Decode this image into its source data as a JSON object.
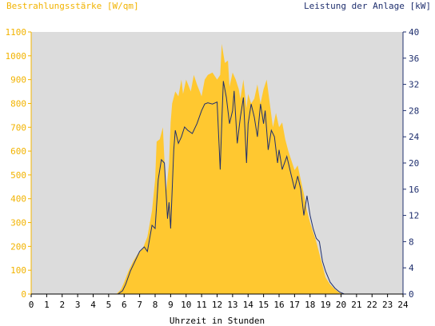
{
  "chart_data": {
    "type": "area",
    "left_title": "Bestrahlungsstärke [W/qm]",
    "right_title": "Leistung der Anlage [kW]",
    "xlabel": "Uhrzeit in Stunden",
    "x_ticks": [
      "0",
      "1",
      "2",
      "3",
      "4",
      "5",
      "6",
      "7",
      "8",
      "9",
      "10",
      "11",
      "12",
      "13",
      "14",
      "15",
      "16",
      "17",
      "18",
      "19",
      "20",
      "21",
      "22",
      "23",
      "24"
    ],
    "xlim": [
      0,
      24
    ],
    "ylim_left": [
      0,
      1100
    ],
    "ylim_right": [
      0,
      40
    ],
    "y_ticks_left": [
      "0",
      "100",
      "200",
      "300",
      "400",
      "500",
      "600",
      "700",
      "800",
      "900",
      "1000",
      "1100"
    ],
    "y_ticks_right": [
      "0",
      "4",
      "8",
      "12",
      "16",
      "20",
      "24",
      "28",
      "32",
      "36",
      "40"
    ],
    "grid": false,
    "colors": {
      "irradiance": "#FFC830",
      "power": "#1F2F6E",
      "plot_bg": "#DCDCDC",
      "left_axis_text": "#F2B300",
      "right_axis_text": "#1F2F6E"
    },
    "series": [
      {
        "name": "Bestrahlungsstärke [W/qm]",
        "axis": "left",
        "x": [
          0,
          5.5,
          5.8,
          6.0,
          6.3,
          6.6,
          6.9,
          7.2,
          7.5,
          7.8,
          8.0,
          8.1,
          8.3,
          8.5,
          8.7,
          8.9,
          9.0,
          9.1,
          9.3,
          9.5,
          9.7,
          9.8,
          10.0,
          10.3,
          10.5,
          10.7,
          11.0,
          11.2,
          11.4,
          11.7,
          12.0,
          12.2,
          12.3,
          12.5,
          12.7,
          12.8,
          13.0,
          13.2,
          13.4,
          13.5,
          13.7,
          13.9,
          14.0,
          14.2,
          14.4,
          14.6,
          14.8,
          15.0,
          15.2,
          15.4,
          15.6,
          15.8,
          16.0,
          16.2,
          16.4,
          16.6,
          16.8,
          17.0,
          17.2,
          17.4,
          17.6,
          17.8,
          18.0,
          18.2,
          18.4,
          18.6,
          18.8,
          19.0,
          19.3,
          19.6,
          19.9,
          20.2,
          20.5,
          20.8,
          24
        ],
        "values": [
          0,
          0,
          20,
          50,
          100,
          140,
          170,
          190,
          240,
          350,
          480,
          640,
          650,
          700,
          420,
          550,
          720,
          800,
          850,
          830,
          900,
          840,
          900,
          850,
          920,
          880,
          830,
          900,
          920,
          930,
          900,
          920,
          1050,
          970,
          980,
          870,
          930,
          900,
          860,
          820,
          900,
          780,
          840,
          800,
          820,
          880,
          800,
          860,
          900,
          800,
          700,
          760,
          700,
          720,
          650,
          600,
          560,
          520,
          540,
          480,
          420,
          350,
          300,
          260,
          220,
          170,
          120,
          70,
          40,
          20,
          5,
          0,
          0,
          0,
          0
        ]
      },
      {
        "name": "Leistung der Anlage [kW]",
        "axis": "right",
        "x": [
          0,
          5.6,
          5.9,
          6.1,
          6.4,
          6.7,
          7.0,
          7.3,
          7.5,
          7.8,
          8.0,
          8.2,
          8.4,
          8.6,
          8.8,
          8.9,
          9.0,
          9.2,
          9.3,
          9.5,
          9.7,
          9.9,
          10.1,
          10.4,
          10.7,
          11.0,
          11.2,
          11.4,
          11.7,
          12.0,
          12.2,
          12.3,
          12.4,
          12.6,
          12.8,
          13.0,
          13.1,
          13.3,
          13.5,
          13.7,
          13.9,
          14.0,
          14.2,
          14.4,
          14.6,
          14.8,
          15.0,
          15.1,
          15.3,
          15.5,
          15.7,
          15.9,
          16.0,
          16.2,
          16.5,
          16.8,
          17.0,
          17.2,
          17.4,
          17.6,
          17.8,
          18.0,
          18.2,
          18.4,
          18.6,
          18.8,
          19.0,
          19.3,
          19.6,
          19.9,
          20.2,
          20.5,
          20.8,
          24
        ],
        "values": [
          0,
          0,
          0.5,
          1.5,
          3.5,
          5,
          6.5,
          7.2,
          6.5,
          10.5,
          10,
          17.5,
          20.5,
          20,
          11.5,
          14,
          10,
          22,
          25,
          23,
          24,
          25.5,
          25,
          24.5,
          26,
          28,
          29,
          29.2,
          29,
          29.3,
          19,
          26,
          32.5,
          30,
          26,
          28,
          31,
          23,
          27,
          30,
          20,
          26,
          29,
          27,
          24,
          29,
          26,
          28,
          22,
          25,
          24,
          20,
          22,
          19,
          21,
          18,
          16,
          18,
          16,
          12,
          15,
          12,
          10,
          8.5,
          8,
          5,
          3.5,
          1.8,
          0.9,
          0.3,
          0,
          0,
          0,
          0
        ]
      }
    ]
  }
}
